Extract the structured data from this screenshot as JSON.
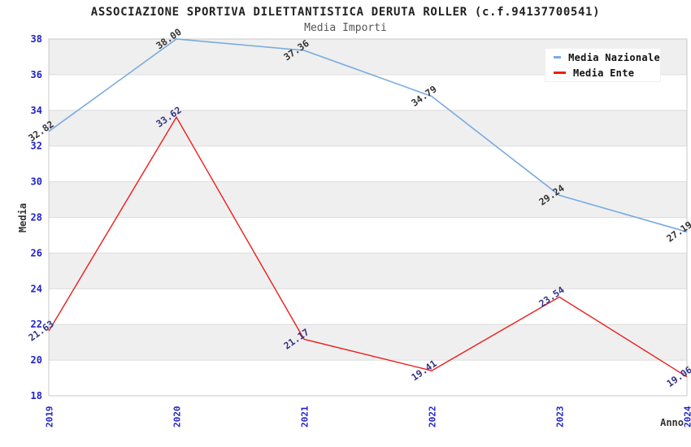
{
  "chart_data": {
    "type": "line",
    "title": "ASSOCIAZIONE SPORTIVA DILETTANTISTICA DERUTA ROLLER (c.f.94137700541)",
    "subtitle": "Media Importi",
    "xlabel": "Anno",
    "ylabel": "Media",
    "categories": [
      "2019",
      "2020",
      "2021",
      "2022",
      "2023",
      "2024"
    ],
    "ylim": [
      18,
      38
    ],
    "yticks": [
      18,
      20,
      22,
      24,
      26,
      28,
      30,
      32,
      34,
      36,
      38
    ],
    "grid": "horizontal",
    "banded_background": true,
    "legend_position": "top-right",
    "series": [
      {
        "name": "Media Nazionale",
        "color": "#79ABDF",
        "label_color": "#333333",
        "values": [
          32.82,
          38.0,
          37.36,
          34.79,
          29.24,
          27.19
        ]
      },
      {
        "name": "Media Ente",
        "color": "#ED1C1C",
        "label_color": "#333388",
        "values": [
          21.63,
          33.62,
          21.17,
          19.41,
          23.54,
          19.06
        ]
      }
    ]
  },
  "style": {
    "tick_label_color": "#2222CC",
    "band_color": "#EFEFEF",
    "grid_color": "#DCDCDC",
    "plot_border_color": "#C9C9C9",
    "title_color": "#222222",
    "subtitle_color": "#555555",
    "axis_title_color": "#333333"
  }
}
